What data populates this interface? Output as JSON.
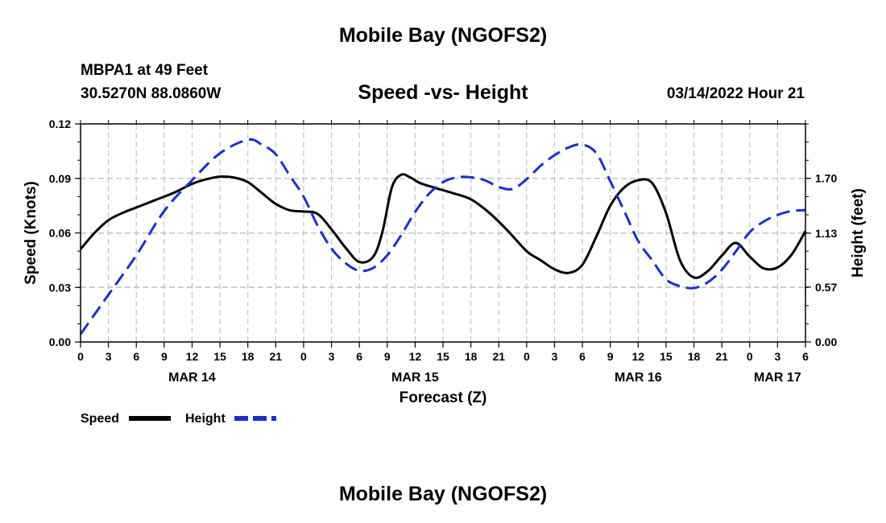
{
  "header": {
    "title": "Mobile Bay (NGOFS2)",
    "station": "MBPA1 at 49 Feet",
    "coords": "30.5270N  88.0860W",
    "subtitle": "Speed -vs- Height",
    "timestamp": "03/14/2022 Hour 21"
  },
  "footer": {
    "title": "Mobile Bay (NGOFS2)"
  },
  "chart_data": {
    "type": "line",
    "title": "Speed -vs- Height",
    "xlabel": "Forecast (Z)",
    "ylabel": "Speed (Knots)",
    "ylabel_right": "Height (feet)",
    "x_range_hours": [
      0,
      78
    ],
    "xtick_step_hours": 3,
    "xtick_labels": [
      "0",
      "3",
      "6",
      "9",
      "12",
      "15",
      "18",
      "21",
      "0",
      "3",
      "6",
      "9",
      "12",
      "15",
      "18",
      "21",
      "0",
      "3",
      "6",
      "9",
      "12",
      "15",
      "18",
      "21",
      "0",
      "3",
      "6"
    ],
    "date_labels": [
      {
        "label": "MAR 14",
        "hour": 12
      },
      {
        "label": "MAR 15",
        "hour": 36
      },
      {
        "label": "MAR 16",
        "hour": 60
      },
      {
        "label": "MAR 17",
        "hour": 75
      }
    ],
    "ylim": [
      0,
      0.12
    ],
    "yticks": [
      "0.00",
      "0.03",
      "0.06",
      "0.09",
      "0.12"
    ],
    "ylim_right": [
      0,
      2.265
    ],
    "yticks_right": [
      "0.00",
      "0.57",
      "1.13",
      "1.70"
    ],
    "grid": true,
    "series": [
      {
        "name": "Speed",
        "axis": "left",
        "color": "#000000",
        "style": "solid",
        "x": [
          0,
          1.5,
          3,
          4.5,
          6,
          8,
          10,
          12,
          13.5,
          15,
          16.5,
          18,
          19.5,
          21,
          22.5,
          24,
          25.5,
          27,
          28.5,
          30,
          31.5,
          32.5,
          33.5,
          34.5,
          35.5,
          36.5,
          38,
          40,
          42,
          44,
          46,
          48,
          49.5,
          51,
          52.5,
          54,
          55.5,
          57,
          58.5,
          60,
          61.5,
          63,
          64.5,
          66,
          67.5,
          69,
          70.5,
          72,
          73.5,
          75,
          76.5,
          78
        ],
        "values": [
          0.051,
          0.06,
          0.067,
          0.071,
          0.074,
          0.078,
          0.082,
          0.087,
          0.0895,
          0.091,
          0.0905,
          0.088,
          0.082,
          0.076,
          0.0725,
          0.0718,
          0.0705,
          0.062,
          0.052,
          0.044,
          0.047,
          0.061,
          0.085,
          0.092,
          0.0905,
          0.0875,
          0.085,
          0.082,
          0.0785,
          0.071,
          0.061,
          0.05,
          0.045,
          0.04,
          0.038,
          0.0425,
          0.058,
          0.075,
          0.085,
          0.089,
          0.0875,
          0.071,
          0.045,
          0.0355,
          0.039,
          0.0475,
          0.0545,
          0.047,
          0.0405,
          0.041,
          0.048,
          0.061
        ]
      },
      {
        "name": "Height",
        "axis": "right",
        "color": "#1c2fcb",
        "style": "dashed",
        "x": [
          0,
          3,
          6,
          9,
          12,
          15,
          18,
          19.5,
          21,
          22.5,
          24,
          25.5,
          27,
          28.5,
          30,
          31.5,
          33,
          34.5,
          36,
          37.5,
          39,
          40.5,
          42,
          43.5,
          45,
          46.5,
          48,
          49.5,
          51,
          52.5,
          54,
          55.5,
          57,
          58.5,
          60,
          61.5,
          63,
          64.5,
          66,
          67.5,
          69,
          70.5,
          72,
          73.5,
          75,
          76.5,
          78
        ],
        "values": [
          0.08,
          0.49,
          0.9,
          1.36,
          1.68,
          1.96,
          2.1,
          2.05,
          1.95,
          1.73,
          1.51,
          1.21,
          0.97,
          0.82,
          0.74,
          0.77,
          0.9,
          1.11,
          1.35,
          1.54,
          1.66,
          1.71,
          1.71,
          1.68,
          1.61,
          1.59,
          1.69,
          1.83,
          1.94,
          2.02,
          2.05,
          1.96,
          1.67,
          1.36,
          1.05,
          0.85,
          0.65,
          0.58,
          0.56,
          0.62,
          0.75,
          0.94,
          1.14,
          1.25,
          1.32,
          1.36,
          1.37
        ]
      }
    ],
    "legend": [
      {
        "label": "Speed",
        "color": "#000000",
        "style": "solid"
      },
      {
        "label": "Height",
        "color": "#1c2fcb",
        "style": "dashed"
      }
    ],
    "legend_position": "bottom-left"
  }
}
